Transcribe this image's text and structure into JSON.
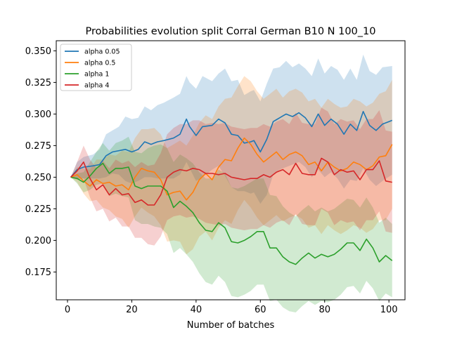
{
  "chart_data": {
    "type": "line",
    "title": "Probabilities evolution split Corral German B10 N 100_10",
    "xlabel": "Number of batches",
    "ylabel": "",
    "xlim": [
      -3.5,
      105
    ],
    "ylim": [
      0.153,
      0.358
    ],
    "xticks": [
      0,
      20,
      40,
      60,
      80,
      100
    ],
    "yticks": [
      0.175,
      0.2,
      0.225,
      0.25,
      0.275,
      0.3,
      0.325,
      0.35
    ],
    "ytick_labels": [
      "0.175",
      "0.200",
      "0.225",
      "0.250",
      "0.275",
      "0.300",
      "0.325",
      "0.350"
    ],
    "grid": false,
    "legend_position": "top-left",
    "series_keypoints": [
      {
        "name": "alpha 0.05",
        "color": "#1f77b4",
        "x": [
          1,
          3,
          5,
          8,
          10,
          12,
          14,
          16,
          18,
          20,
          22,
          24,
          26,
          28,
          30,
          33,
          35,
          37,
          38,
          40,
          42,
          45,
          47,
          49,
          51,
          53,
          55,
          57,
          58,
          60,
          62,
          64,
          66,
          68,
          70,
          72,
          74,
          76,
          78,
          80,
          82,
          84,
          86,
          88,
          90,
          92,
          94,
          96,
          98,
          101
        ],
        "mean": [
          0.25,
          0.256,
          0.258,
          0.259,
          0.26,
          0.267,
          0.27,
          0.271,
          0.272,
          0.27,
          0.272,
          0.278,
          0.276,
          0.278,
          0.279,
          0.281,
          0.284,
          0.296,
          0.29,
          0.283,
          0.29,
          0.291,
          0.296,
          0.293,
          0.284,
          0.283,
          0.277,
          0.278,
          0.279,
          0.27,
          0.28,
          0.294,
          0.297,
          0.3,
          0.298,
          0.301,
          0.297,
          0.29,
          0.3,
          0.291,
          0.296,
          0.292,
          0.284,
          0.292,
          0.287,
          0.302,
          0.291,
          0.287,
          0.292,
          0.295
        ],
        "upper": [
          0.25,
          0.262,
          0.266,
          0.268,
          0.272,
          0.284,
          0.287,
          0.29,
          0.298,
          0.296,
          0.297,
          0.306,
          0.303,
          0.307,
          0.309,
          0.313,
          0.316,
          0.33,
          0.325,
          0.32,
          0.33,
          0.326,
          0.332,
          0.336,
          0.326,
          0.327,
          0.315,
          0.318,
          0.319,
          0.31,
          0.324,
          0.336,
          0.337,
          0.342,
          0.337,
          0.34,
          0.336,
          0.33,
          0.344,
          0.332,
          0.338,
          0.335,
          0.327,
          0.336,
          0.327,
          0.347,
          0.334,
          0.331,
          0.337,
          0.338
        ],
        "lower": [
          0.25,
          0.249,
          0.249,
          0.249,
          0.249,
          0.25,
          0.253,
          0.252,
          0.247,
          0.245,
          0.247,
          0.25,
          0.25,
          0.249,
          0.249,
          0.249,
          0.252,
          0.262,
          0.257,
          0.247,
          0.25,
          0.256,
          0.259,
          0.251,
          0.242,
          0.239,
          0.239,
          0.237,
          0.238,
          0.229,
          0.236,
          0.252,
          0.256,
          0.258,
          0.26,
          0.262,
          0.258,
          0.25,
          0.256,
          0.25,
          0.254,
          0.249,
          0.241,
          0.248,
          0.247,
          0.257,
          0.248,
          0.243,
          0.247,
          0.252
        ]
      },
      {
        "name": "alpha 0.5",
        "color": "#ff7f0e",
        "x": [
          1,
          3,
          5,
          7,
          9,
          11,
          13,
          15,
          17,
          19,
          21,
          23,
          25,
          27,
          29,
          31,
          33,
          35,
          37,
          39,
          41,
          43,
          45,
          47,
          49,
          51,
          53,
          55,
          57,
          59,
          61,
          63,
          65,
          67,
          69,
          71,
          73,
          75,
          77,
          79,
          81,
          83,
          85,
          87,
          89,
          91,
          93,
          95,
          97,
          99,
          101
        ],
        "mean": [
          0.25,
          0.252,
          0.247,
          0.243,
          0.248,
          0.245,
          0.246,
          0.243,
          0.244,
          0.24,
          0.25,
          0.257,
          0.255,
          0.254,
          0.248,
          0.236,
          0.238,
          0.239,
          0.232,
          0.238,
          0.248,
          0.253,
          0.248,
          0.258,
          0.264,
          0.263,
          0.273,
          0.281,
          0.276,
          0.268,
          0.262,
          0.266,
          0.27,
          0.264,
          0.268,
          0.27,
          0.267,
          0.26,
          0.262,
          0.255,
          0.262,
          0.258,
          0.255,
          0.257,
          0.262,
          0.26,
          0.256,
          0.259,
          0.266,
          0.267,
          0.276
        ],
        "upper": [
          0.25,
          0.258,
          0.257,
          0.256,
          0.264,
          0.264,
          0.268,
          0.267,
          0.271,
          0.27,
          0.281,
          0.288,
          0.288,
          0.289,
          0.284,
          0.273,
          0.276,
          0.279,
          0.275,
          0.283,
          0.293,
          0.299,
          0.296,
          0.306,
          0.312,
          0.313,
          0.322,
          0.33,
          0.326,
          0.318,
          0.312,
          0.316,
          0.32,
          0.313,
          0.318,
          0.32,
          0.317,
          0.31,
          0.312,
          0.305,
          0.312,
          0.308,
          0.305,
          0.306,
          0.312,
          0.31,
          0.306,
          0.309,
          0.316,
          0.318,
          0.327
        ],
        "lower": [
          0.25,
          0.246,
          0.237,
          0.231,
          0.232,
          0.226,
          0.224,
          0.219,
          0.217,
          0.21,
          0.219,
          0.226,
          0.222,
          0.219,
          0.212,
          0.199,
          0.2,
          0.199,
          0.189,
          0.193,
          0.203,
          0.207,
          0.2,
          0.21,
          0.216,
          0.213,
          0.224,
          0.232,
          0.226,
          0.218,
          0.212,
          0.216,
          0.22,
          0.215,
          0.218,
          0.22,
          0.217,
          0.21,
          0.212,
          0.205,
          0.212,
          0.208,
          0.205,
          0.208,
          0.212,
          0.21,
          0.206,
          0.209,
          0.216,
          0.216,
          0.225
        ]
      },
      {
        "name": "alpha 1",
        "color": "#2ca02c",
        "x": [
          1,
          3,
          5,
          7,
          9,
          11,
          13,
          15,
          17,
          19,
          21,
          23,
          25,
          27,
          29,
          31,
          33,
          35,
          37,
          39,
          41,
          43,
          45,
          47,
          49,
          51,
          53,
          55,
          57,
          59,
          61,
          63,
          65,
          67,
          69,
          71,
          73,
          75,
          77,
          79,
          81,
          83,
          85,
          87,
          89,
          91,
          93,
          95,
          97,
          99,
          101
        ],
        "mean": [
          0.25,
          0.249,
          0.246,
          0.251,
          0.257,
          0.261,
          0.253,
          0.257,
          0.257,
          0.258,
          0.243,
          0.241,
          0.243,
          0.243,
          0.243,
          0.239,
          0.226,
          0.231,
          0.227,
          0.222,
          0.214,
          0.208,
          0.207,
          0.214,
          0.21,
          0.199,
          0.198,
          0.2,
          0.203,
          0.207,
          0.207,
          0.194,
          0.194,
          0.187,
          0.183,
          0.181,
          0.186,
          0.19,
          0.186,
          0.189,
          0.187,
          0.189,
          0.193,
          0.198,
          0.198,
          0.192,
          0.201,
          0.194,
          0.183,
          0.188,
          0.184
        ],
        "upper": [
          0.25,
          0.253,
          0.254,
          0.262,
          0.27,
          0.277,
          0.271,
          0.277,
          0.279,
          0.282,
          0.27,
          0.269,
          0.273,
          0.275,
          0.276,
          0.273,
          0.262,
          0.268,
          0.265,
          0.261,
          0.254,
          0.249,
          0.249,
          0.256,
          0.253,
          0.242,
          0.241,
          0.243,
          0.246,
          0.249,
          0.249,
          0.236,
          0.235,
          0.227,
          0.222,
          0.219,
          0.224,
          0.228,
          0.223,
          0.226,
          0.223,
          0.225,
          0.229,
          0.233,
          0.232,
          0.226,
          0.234,
          0.226,
          0.214,
          0.218,
          0.213
        ],
        "lower": [
          0.25,
          0.245,
          0.238,
          0.24,
          0.244,
          0.245,
          0.235,
          0.237,
          0.235,
          0.234,
          0.216,
          0.213,
          0.213,
          0.211,
          0.21,
          0.205,
          0.19,
          0.194,
          0.189,
          0.183,
          0.174,
          0.167,
          0.165,
          0.172,
          0.167,
          0.156,
          0.155,
          0.157,
          0.16,
          0.165,
          0.165,
          0.152,
          0.153,
          0.147,
          0.144,
          0.143,
          0.148,
          0.152,
          0.149,
          0.152,
          0.151,
          0.153,
          0.157,
          0.163,
          0.164,
          0.158,
          0.168,
          0.162,
          0.152,
          0.158,
          0.155
        ]
      },
      {
        "name": "alpha 4",
        "color": "#d62728",
        "x": [
          1,
          3,
          5,
          7,
          9,
          11,
          13,
          15,
          17,
          19,
          21,
          23,
          25,
          27,
          29,
          31,
          33,
          35,
          37,
          39,
          41,
          43,
          45,
          47,
          49,
          51,
          53,
          55,
          57,
          59,
          61,
          63,
          65,
          67,
          69,
          71,
          73,
          75,
          77,
          79,
          81,
          83,
          85,
          87,
          89,
          91,
          93,
          95,
          97,
          99,
          101
        ],
        "mean": [
          0.25,
          0.255,
          0.262,
          0.249,
          0.24,
          0.244,
          0.236,
          0.241,
          0.236,
          0.237,
          0.23,
          0.232,
          0.228,
          0.228,
          0.236,
          0.25,
          0.254,
          0.256,
          0.255,
          0.257,
          0.256,
          0.253,
          0.253,
          0.252,
          0.253,
          0.25,
          0.249,
          0.248,
          0.249,
          0.249,
          0.252,
          0.25,
          0.254,
          0.256,
          0.252,
          0.261,
          0.253,
          0.252,
          0.252,
          0.265,
          0.262,
          0.252,
          0.256,
          0.254,
          0.255,
          0.248,
          0.256,
          0.256,
          0.263,
          0.247,
          0.246
        ],
        "upper": [
          0.25,
          0.262,
          0.275,
          0.264,
          0.257,
          0.263,
          0.257,
          0.264,
          0.261,
          0.263,
          0.258,
          0.262,
          0.259,
          0.26,
          0.269,
          0.284,
          0.289,
          0.292,
          0.292,
          0.295,
          0.295,
          0.292,
          0.293,
          0.292,
          0.293,
          0.29,
          0.289,
          0.288,
          0.289,
          0.289,
          0.292,
          0.29,
          0.294,
          0.296,
          0.292,
          0.301,
          0.293,
          0.292,
          0.292,
          0.305,
          0.302,
          0.292,
          0.296,
          0.294,
          0.295,
          0.288,
          0.296,
          0.296,
          0.303,
          0.287,
          0.286
        ],
        "lower": [
          0.25,
          0.248,
          0.249,
          0.234,
          0.223,
          0.225,
          0.215,
          0.218,
          0.211,
          0.211,
          0.202,
          0.202,
          0.197,
          0.196,
          0.203,
          0.216,
          0.219,
          0.22,
          0.218,
          0.219,
          0.217,
          0.214,
          0.213,
          0.212,
          0.213,
          0.21,
          0.209,
          0.208,
          0.209,
          0.209,
          0.212,
          0.21,
          0.214,
          0.216,
          0.212,
          0.221,
          0.213,
          0.212,
          0.212,
          0.225,
          0.222,
          0.212,
          0.216,
          0.214,
          0.215,
          0.208,
          0.216,
          0.216,
          0.223,
          0.207,
          0.206
        ]
      }
    ]
  }
}
